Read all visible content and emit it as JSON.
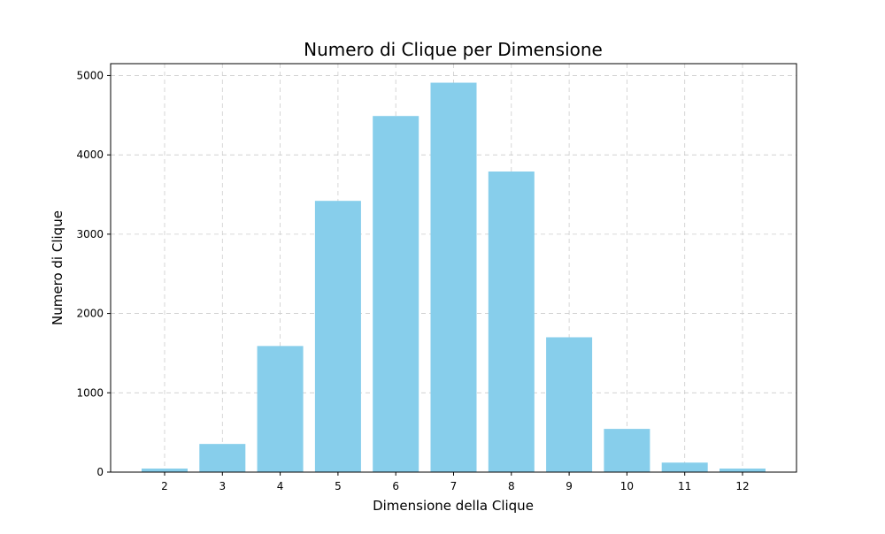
{
  "chart_data": {
    "type": "bar",
    "title": "Numero di Clique per Dimensione",
    "xlabel": "Dimensione della Clique",
    "ylabel": "Numero di Clique",
    "categories": [
      "2",
      "3",
      "4",
      "5",
      "6",
      "7",
      "8",
      "9",
      "10",
      "11",
      "12"
    ],
    "values": [
      45,
      355,
      1590,
      3420,
      4490,
      4910,
      3790,
      1700,
      545,
      120,
      45
    ],
    "ylim": [
      0,
      5150
    ],
    "yticks": [
      0,
      1000,
      2000,
      3000,
      4000,
      5000
    ],
    "grid": true,
    "bar_color": "#87ceeb",
    "grid_color": "#cccccc"
  }
}
